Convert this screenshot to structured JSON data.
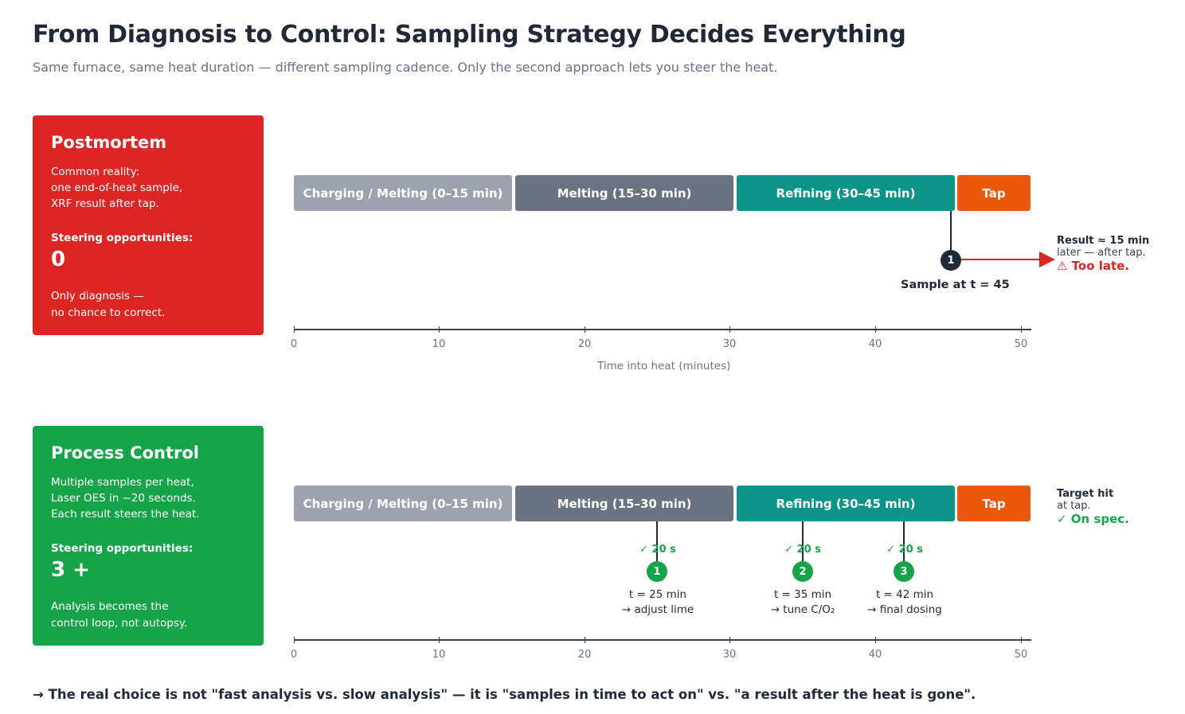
{
  "header": {
    "title": "From Diagnosis to Control: Sampling Strategy Decides Everything",
    "subtitle": "Same furnace, same heat duration — different sampling cadence. Only the second approach lets you steer the heat."
  },
  "phases": {
    "charging": "Charging / Melting (0–15 min)",
    "melting": "Melting (15–30 min)",
    "refining": "Refining (30–45 min)",
    "tap": "Tap"
  },
  "axis": {
    "ticks": [
      "0",
      "10",
      "20",
      "30",
      "40",
      "50"
    ],
    "title": "Time into heat (minutes)"
  },
  "postmortem": {
    "title": "Postmortem",
    "body": [
      "Common reality:",
      "one end-of-heat sample,",
      "XRF result after tap."
    ],
    "steer_label": "Steering opportunities:",
    "steer_value": "0",
    "foot": [
      "Only diagnosis —",
      "no chance to correct."
    ],
    "sample_number": "1",
    "sample_label": "Sample at t = 45",
    "note_bold": "Result ≈ 15 min",
    "note_text": "later — after tap.",
    "note_alert": "⚠ Too late."
  },
  "process_control": {
    "title": "Process Control",
    "body": [
      "Multiple samples per heat,",
      "Laser OES in ~20 seconds.",
      "Each result steers the heat."
    ],
    "steer_label": "Steering opportunities:",
    "steer_value": "3 +",
    "foot": [
      "Analysis becomes the",
      "control loop, not autopsy."
    ],
    "samples": [
      {
        "number": "1",
        "check": "✓ 20 s",
        "time": "t = 25 min",
        "action": "→ adjust lime"
      },
      {
        "number": "2",
        "check": "✓ 20 s",
        "time": "t = 35 min",
        "action": "→ tune C/O₂"
      },
      {
        "number": "3",
        "check": "✓ 20 s",
        "time": "t = 42 min",
        "action": "→ final dosing"
      }
    ],
    "note_bold": "Target hit",
    "note_text": "at tap.",
    "note_alert": "✓ On spec."
  },
  "footer": "→ The real choice is not \"fast analysis vs. slow analysis\" — it is \"samples in time to act on\" vs. \"a result after the heat is gone\"."
}
